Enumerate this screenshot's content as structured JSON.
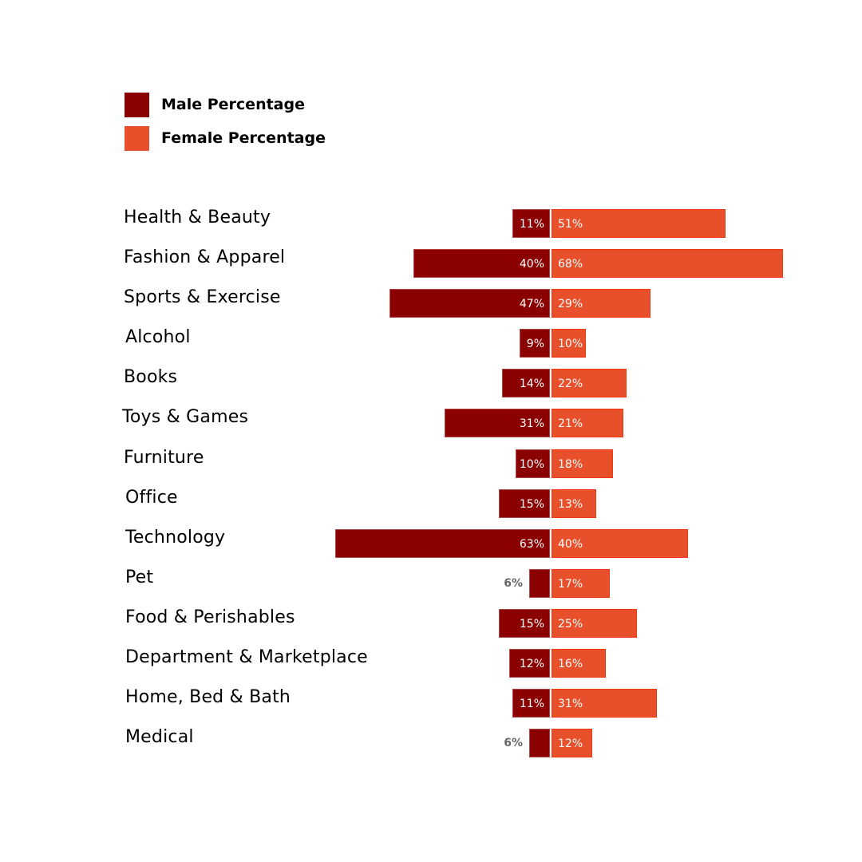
{
  "legend": {
    "items": [
      {
        "label": "Male Percentage",
        "color": "#8b0000"
      },
      {
        "label": "Female Percentage",
        "color": "#e8502c"
      }
    ]
  },
  "chart_data": {
    "type": "bar",
    "orientation": "horizontal-diverging",
    "title": "",
    "xlabel": "",
    "ylabel": "",
    "grid": false,
    "legend_position": "top-left",
    "categories": [
      "Health & Beauty",
      "Fashion & Apparel",
      "Sports & Exercise",
      "Alcohol",
      "Books",
      "Toys & Games",
      "Furniture",
      "Office",
      "Technology",
      "Pet",
      "Food & Perishables",
      "Department & Marketplace",
      "Home, Bed & Bath",
      "Medical"
    ],
    "series": [
      {
        "name": "Male Percentage",
        "color": "#8b0000",
        "values": [
          11,
          40,
          47,
          9,
          14,
          31,
          10,
          15,
          63,
          6,
          15,
          12,
          11,
          6
        ],
        "labels": [
          "11%",
          "40%",
          "47%",
          "9%",
          "14%",
          "31%",
          "10%",
          "15%",
          "63%",
          "6%",
          "15%",
          "12%",
          "11%",
          "6%"
        ]
      },
      {
        "name": "Female Percentage",
        "color": "#e8502c",
        "values": [
          51,
          68,
          29,
          10,
          22,
          21,
          18,
          13,
          40,
          17,
          25,
          16,
          31,
          12
        ],
        "labels": [
          "51%",
          "68%",
          "29%",
          "10%",
          "22%",
          "21%",
          "18%",
          "13%",
          "40%",
          "17%",
          "25%",
          "16%",
          "31%",
          "12%"
        ]
      }
    ],
    "unit": "%"
  }
}
